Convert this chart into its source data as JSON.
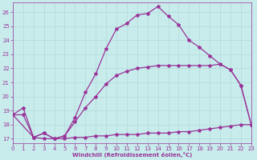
{
  "xlabel": "Windchill (Refroidissement éolien,°C)",
  "bg_color": "#c8ecec",
  "grid_color": "#b0d8d8",
  "line_color": "#993399",
  "xlim": [
    0,
    23
  ],
  "ylim": [
    16.7,
    26.7
  ],
  "yticks": [
    17,
    18,
    19,
    20,
    21,
    22,
    23,
    24,
    25,
    26
  ],
  "xticks": [
    0,
    1,
    2,
    3,
    4,
    5,
    6,
    7,
    8,
    9,
    10,
    11,
    12,
    13,
    14,
    15,
    16,
    17,
    18,
    19,
    20,
    21,
    22,
    23
  ],
  "line1_x": [
    0,
    1,
    2,
    3,
    4,
    5,
    6,
    7,
    8,
    9,
    10,
    11,
    12,
    13,
    14,
    15,
    16,
    17,
    18,
    19,
    20,
    21,
    22,
    23
  ],
  "line1_y": [
    18.7,
    19.2,
    17.1,
    17.4,
    17.0,
    17.2,
    18.5,
    20.3,
    21.6,
    23.4,
    24.8,
    25.2,
    25.8,
    25.9,
    26.4,
    25.7,
    25.1,
    24.0,
    23.5,
    22.9,
    22.3,
    21.9,
    20.8,
    18.0
  ],
  "line2_x": [
    0,
    1,
    2,
    3,
    4,
    5,
    6,
    7,
    8,
    9,
    10,
    11,
    12,
    13,
    14,
    15,
    16,
    17,
    18,
    19,
    20,
    21,
    22,
    23
  ],
  "line2_y": [
    18.7,
    18.7,
    17.1,
    17.4,
    17.0,
    17.2,
    18.2,
    19.2,
    20.0,
    20.9,
    21.5,
    21.8,
    22.0,
    22.1,
    22.2,
    22.2,
    22.2,
    22.2,
    22.2,
    22.2,
    22.3,
    21.9,
    20.8,
    18.0
  ],
  "line3_x": [
    0,
    2,
    3,
    4,
    5,
    6,
    7,
    8,
    9,
    10,
    11,
    12,
    13,
    14,
    15,
    16,
    17,
    18,
    19,
    20,
    21,
    22,
    23
  ],
  "line3_y": [
    18.7,
    17.1,
    17.0,
    17.0,
    17.0,
    17.1,
    17.1,
    17.2,
    17.2,
    17.3,
    17.3,
    17.3,
    17.4,
    17.4,
    17.4,
    17.5,
    17.5,
    17.6,
    17.7,
    17.8,
    17.9,
    18.0,
    18.0
  ]
}
